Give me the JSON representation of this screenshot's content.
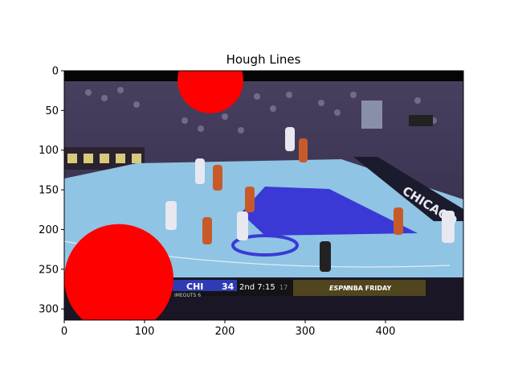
{
  "chart_data": {
    "type": "image",
    "title": "Hough Lines",
    "xlim": [
      0,
      497
    ],
    "ylim": [
      314,
      0
    ],
    "xticks": [
      0,
      100,
      200,
      300,
      400
    ],
    "yticks": [
      0,
      50,
      100,
      150,
      200,
      250,
      300
    ],
    "circles": [
      {
        "cx": 182,
        "cy": 12,
        "r": 41,
        "color": "#ff0000"
      },
      {
        "cx": 68,
        "cy": 262,
        "r": 68,
        "color": "#ff0000"
      }
    ]
  },
  "scoreboard": {
    "team": "CHI",
    "score": "34",
    "clock": "2nd 7:15",
    "shot_clock": "17",
    "timeouts": "IMEOUTS 6",
    "network": "ESPN",
    "program": "NBA FRIDAY"
  },
  "court": {
    "baseline_text": "CHICAGO",
    "colors": {
      "court_floor": "#8fc4e4",
      "paint": "#3a39d6",
      "crowd": "#3a3558",
      "banner": "#2a2230",
      "player_white": "#e8e8f0",
      "player_orange": "#c85a2a"
    }
  }
}
